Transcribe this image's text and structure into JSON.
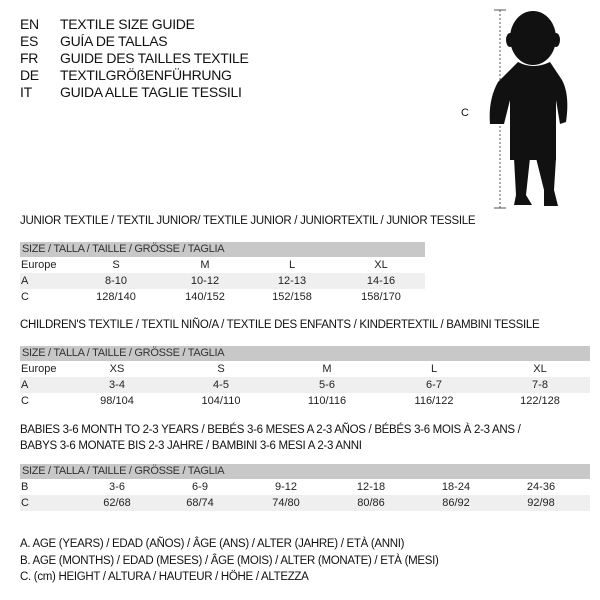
{
  "header": {
    "lines": [
      {
        "code": "EN",
        "text": "TEXTILE SIZE GUIDE"
      },
      {
        "code": "ES",
        "text": "GUÍA DE TALLAS"
      },
      {
        "code": "FR",
        "text": "GUIDE DES TAILLES TEXTILE"
      },
      {
        "code": "DE",
        "text": "TEXTILGRÖßENFÜHRUNG"
      },
      {
        "code": "IT",
        "text": "GUIDA ALLE TAGLIE TESSILI"
      }
    ]
  },
  "figure": {
    "measure_label": "C",
    "icon": "child-silhouette"
  },
  "junior": {
    "title": "JUNIOR TEXTILE / TEXTIL JUNIOR/ TEXTILE JUNIOR / JUNIORTEXTIL / JUNIOR TESSILE",
    "header": "SIZE / TALLA / TAILLE / GRÖSSE / TAGLIA",
    "rows": [
      {
        "label": "Europe",
        "cells": [
          "S",
          "M",
          "L",
          "XL"
        ]
      },
      {
        "label": "A",
        "cells": [
          "8-10",
          "10-12",
          "12-13",
          "14-16"
        ]
      },
      {
        "label": "C",
        "cells": [
          "128/140",
          "140/152",
          "152/158",
          "158/170"
        ]
      }
    ]
  },
  "children": {
    "title": "CHILDREN'S TEXTILE / TEXTIL NIÑO/A / TEXTILE DES ENFANTS / KINDERTEXTIL / BAMBINI TESSILE",
    "header": "SIZE / TALLA / TAILLE / GRÖSSE / TAGLIA",
    "rows": [
      {
        "label": "Europe",
        "cells": [
          "XS",
          "S",
          "M",
          "L",
          "XL"
        ]
      },
      {
        "label": "A",
        "cells": [
          "3-4",
          "4-5",
          "5-6",
          "6-7",
          "7-8"
        ]
      },
      {
        "label": "C",
        "cells": [
          "98/104",
          "104/110",
          "110/116",
          "116/122",
          "122/128"
        ]
      }
    ]
  },
  "babies": {
    "title_line1": "BABIES 3-6 MONTH TO 2-3 YEARS / BEBÉS 3-6 MESES A 2-3 AÑOS / BÉBÉS 3-6 MOIS À 2-3 ANS /",
    "title_line2": "BABYS 3-6 MONATE BIS 2-3 JAHRE / BAMBINI 3-6 MESI A 2-3 ANNI",
    "header": "SIZE / TALLA / TAILLE / GRÖSSE / TAGLIA",
    "rows": [
      {
        "label": "B",
        "cells": [
          "3-6",
          "6-9",
          "9-12",
          "12-18",
          "18-24",
          "24-36"
        ]
      },
      {
        "label": "C",
        "cells": [
          "62/68",
          "68/74",
          "74/80",
          "80/86",
          "86/92",
          "92/98"
        ]
      }
    ]
  },
  "legend": [
    "A. AGE (YEARS) / EDAD (AÑOS) / ÂGE (ANS) / ALTER (JAHRE) / ETÀ (ANNI)",
    "B. AGE (MONTHS) / EDAD (MESES) / ÂGE (MOIS) / ALTER (MONATE) / ETÀ (MESI)",
    "C. (cm) HEIGHT / ALTURA / HAUTEUR / HÖHE / ALTEZZA"
  ]
}
